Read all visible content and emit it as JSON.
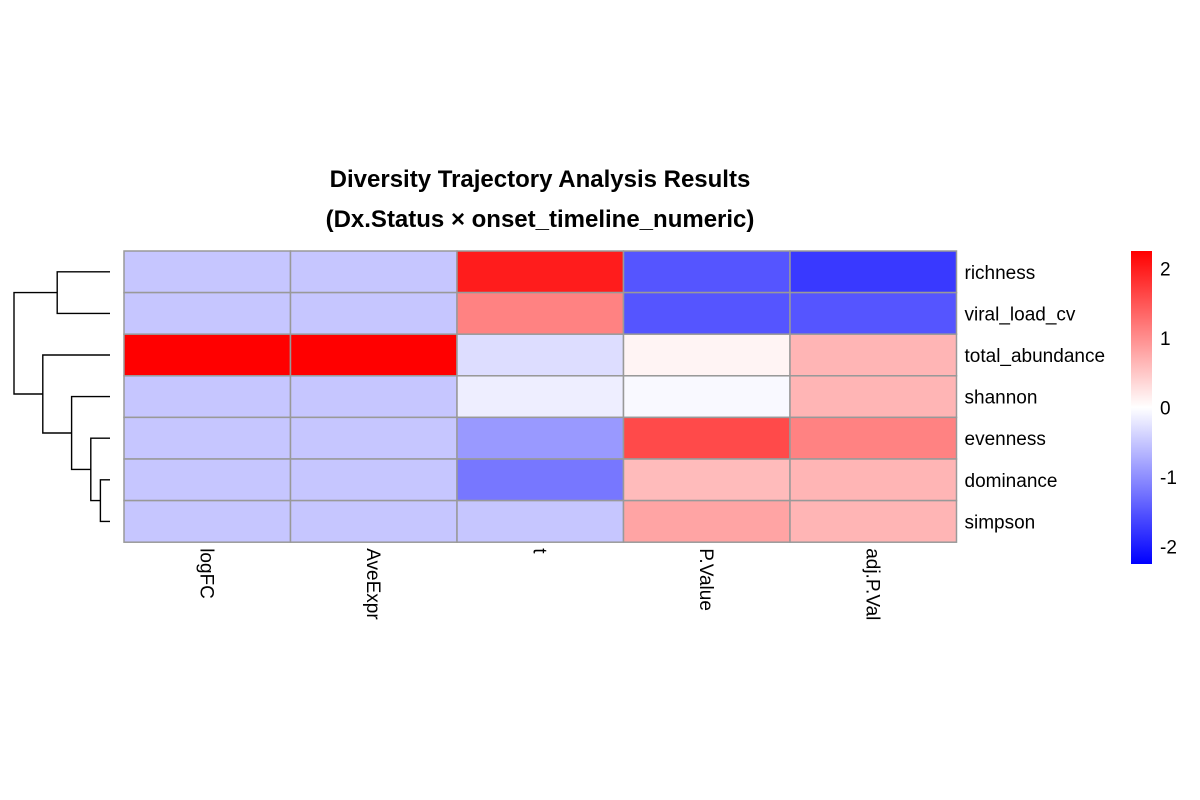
{
  "chart_data": {
    "type": "heatmap",
    "title": "Diversity Trajectory Analysis Results",
    "subtitle": "(Dx.Status × onset_timeline_numeric)",
    "columns": [
      "logFC",
      "AveExpr",
      "t",
      "P.Value",
      "adj.P.Val"
    ],
    "rows": [
      "richness",
      "viral_load_cv",
      "total_abundance",
      "shannon",
      "evenness",
      "dominance",
      "simpson"
    ],
    "values": [
      [
        -0.5,
        -0.5,
        2.0,
        -1.5,
        -1.75
      ],
      [
        -0.5,
        -0.5,
        1.1,
        -1.5,
        -1.5
      ],
      [
        2.25,
        2.25,
        -0.3,
        0.1,
        0.65
      ],
      [
        -0.5,
        -0.5,
        -0.15,
        -0.05,
        0.65
      ],
      [
        -0.5,
        -0.5,
        -0.9,
        1.6,
        1.1
      ],
      [
        -0.5,
        -0.5,
        -1.2,
        0.6,
        0.65
      ],
      [
        -0.5,
        -0.5,
        -0.5,
        0.8,
        0.65
      ]
    ],
    "color_scale": {
      "low": "#0000ff",
      "mid": "#ffffff",
      "high": "#ff0000",
      "range": [
        -2.25,
        2.25
      ]
    },
    "legend": {
      "ticks": [
        2,
        1,
        0,
        -1,
        -2
      ],
      "placement": "right"
    },
    "row_dendrogram": {
      "leaves": [
        "richness",
        "viral_load_cv",
        "total_abundance",
        "shannon",
        "evenness",
        "dominance",
        "simpson"
      ],
      "merges": [
        [
          -6,
          -7,
          0.1
        ],
        [
          -5,
          1,
          0.2
        ],
        [
          -4,
          2,
          0.4
        ],
        [
          -1,
          -2,
          0.55
        ],
        [
          -3,
          3,
          0.7
        ],
        [
          4,
          5,
          1.0
        ]
      ]
    },
    "cell_border": "#999999"
  }
}
